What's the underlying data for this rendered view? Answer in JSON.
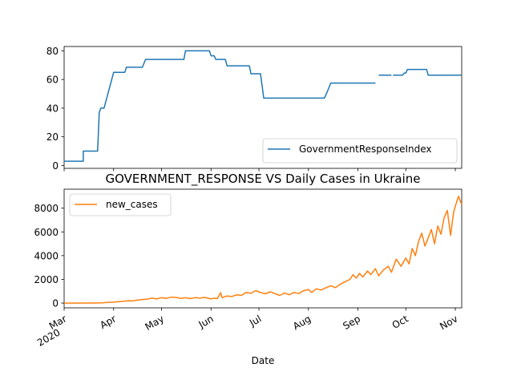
{
  "chart_data": [
    {
      "type": "line",
      "title": "",
      "xlabel": "",
      "ylabel": "",
      "ylim": [
        -2,
        83
      ],
      "yticks": [
        0,
        20,
        40,
        60,
        80
      ],
      "legend": {
        "position": "lower-right",
        "entries": [
          "GovernmentResponseIndex"
        ]
      },
      "grid": false,
      "series": [
        {
          "name": "GovernmentResponseIndex",
          "color": "#1f77b4",
          "segments": [
            [
              [
                "2020-03-01",
                3
              ],
              [
                "2020-03-13",
                3
              ],
              [
                "2020-03-13",
                10
              ],
              [
                "2020-03-22",
                10
              ],
              [
                "2020-03-23",
                37
              ],
              [
                "2020-03-24",
                40
              ],
              [
                "2020-03-26",
                40
              ],
              [
                "2020-04-01",
                65
              ],
              [
                "2020-04-08",
                65
              ],
              [
                "2020-04-09",
                68.5
              ],
              [
                "2020-04-19",
                68.5
              ],
              [
                "2020-04-21",
                74
              ],
              [
                "2020-05-15",
                74
              ],
              [
                "2020-05-16",
                80
              ],
              [
                "2020-05-31",
                80
              ],
              [
                "2020-06-01",
                76.5
              ],
              [
                "2020-06-03",
                76.5
              ],
              [
                "2020-06-04",
                74
              ],
              [
                "2020-06-10",
                74
              ],
              [
                "2020-06-11",
                69.5
              ],
              [
                "2020-06-25",
                69.5
              ],
              [
                "2020-06-26",
                64
              ],
              [
                "2020-07-02",
                64
              ],
              [
                "2020-07-04",
                47
              ],
              [
                "2020-08-11",
                47
              ],
              [
                "2020-08-13",
                52
              ],
              [
                "2020-08-15",
                57.5
              ],
              [
                "2020-09-12",
                57.5
              ]
            ],
            [
              [
                "2020-09-14",
                63
              ],
              [
                "2020-09-22",
                63
              ]
            ],
            [
              [
                "2020-09-23",
                63
              ],
              [
                "2020-09-29",
                63
              ],
              [
                "2020-09-30",
                64.5
              ],
              [
                "2020-10-01",
                64.5
              ],
              [
                "2020-10-02",
                67
              ],
              [
                "2020-10-14",
                67
              ],
              [
                "2020-10-15",
                63
              ],
              [
                "2020-11-05",
                63
              ]
            ]
          ]
        }
      ]
    },
    {
      "type": "line",
      "title": "GOVERNMENT_RESPONSE VS Daily Cases in Ukraine",
      "xlabel": "Date",
      "ylabel": "",
      "ylim": [
        -400,
        9600
      ],
      "yticks": [
        0,
        2000,
        4000,
        6000,
        8000
      ],
      "xlim": [
        "2020-03-01",
        "2020-11-05"
      ],
      "xticks": [
        {
          "date": "2020-03-01",
          "label": "Mar",
          "sublabel": "2020"
        },
        {
          "date": "2020-04-01",
          "label": "Apr"
        },
        {
          "date": "2020-05-01",
          "label": "May"
        },
        {
          "date": "2020-06-01",
          "label": "Jun"
        },
        {
          "date": "2020-07-01",
          "label": "Jul"
        },
        {
          "date": "2020-08-01",
          "label": "Aug"
        },
        {
          "date": "2020-09-01",
          "label": "Sep"
        },
        {
          "date": "2020-10-01",
          "label": "Oct"
        },
        {
          "date": "2020-11-01",
          "label": "Nov"
        }
      ],
      "legend": {
        "position": "upper-left",
        "entries": [
          "new_cases"
        ]
      },
      "grid": false,
      "series": [
        {
          "name": "new_cases",
          "color": "#ff7f0e",
          "points": [
            [
              "2020-03-01",
              0
            ],
            [
              "2020-03-20",
              5
            ],
            [
              "2020-03-25",
              20
            ],
            [
              "2020-03-28",
              50
            ],
            [
              "2020-04-01",
              80
            ],
            [
              "2020-04-04",
              120
            ],
            [
              "2020-04-07",
              150
            ],
            [
              "2020-04-10",
              200
            ],
            [
              "2020-04-13",
              180
            ],
            [
              "2020-04-16",
              260
            ],
            [
              "2020-04-19",
              300
            ],
            [
              "2020-04-22",
              330
            ],
            [
              "2020-04-25",
              420
            ],
            [
              "2020-04-28",
              350
            ],
            [
              "2020-05-01",
              460
            ],
            [
              "2020-05-04",
              400
            ],
            [
              "2020-05-07",
              500
            ],
            [
              "2020-05-10",
              480
            ],
            [
              "2020-05-13",
              400
            ],
            [
              "2020-05-16",
              450
            ],
            [
              "2020-05-19",
              380
            ],
            [
              "2020-05-22",
              460
            ],
            [
              "2020-05-25",
              420
            ],
            [
              "2020-05-28",
              480
            ],
            [
              "2020-06-01",
              350
            ],
            [
              "2020-06-03",
              420
            ],
            [
              "2020-06-05",
              380
            ],
            [
              "2020-06-07",
              880
            ],
            [
              "2020-06-08",
              450
            ],
            [
              "2020-06-11",
              600
            ],
            [
              "2020-06-14",
              550
            ],
            [
              "2020-06-17",
              700
            ],
            [
              "2020-06-20",
              650
            ],
            [
              "2020-06-23",
              900
            ],
            [
              "2020-06-26",
              820
            ],
            [
              "2020-06-29",
              1050
            ],
            [
              "2020-07-02",
              900
            ],
            [
              "2020-07-05",
              780
            ],
            [
              "2020-07-08",
              950
            ],
            [
              "2020-07-11",
              800
            ],
            [
              "2020-07-14",
              650
            ],
            [
              "2020-07-17",
              850
            ],
            [
              "2020-07-20",
              700
            ],
            [
              "2020-07-23",
              900
            ],
            [
              "2020-07-26",
              800
            ],
            [
              "2020-07-29",
              1050
            ],
            [
              "2020-08-01",
              1150
            ],
            [
              "2020-08-03",
              900
            ],
            [
              "2020-08-06",
              1200
            ],
            [
              "2020-08-09",
              1100
            ],
            [
              "2020-08-12",
              1300
            ],
            [
              "2020-08-15",
              1450
            ],
            [
              "2020-08-18",
              1300
            ],
            [
              "2020-08-21",
              1600
            ],
            [
              "2020-08-24",
              1800
            ],
            [
              "2020-08-27",
              2000
            ],
            [
              "2020-08-29",
              2400
            ],
            [
              "2020-08-31",
              2100
            ],
            [
              "2020-09-02",
              2500
            ],
            [
              "2020-09-04",
              2200
            ],
            [
              "2020-09-07",
              2700
            ],
            [
              "2020-09-09",
              2400
            ],
            [
              "2020-09-12",
              2900
            ],
            [
              "2020-09-14",
              2300
            ],
            [
              "2020-09-17",
              2800
            ],
            [
              "2020-09-20",
              3100
            ],
            [
              "2020-09-22",
              2600
            ],
            [
              "2020-09-25",
              3700
            ],
            [
              "2020-09-28",
              3100
            ],
            [
              "2020-10-01",
              3800
            ],
            [
              "2020-10-03",
              3300
            ],
            [
              "2020-10-05",
              4600
            ],
            [
              "2020-10-07",
              4000
            ],
            [
              "2020-10-09",
              5200
            ],
            [
              "2020-10-11",
              5900
            ],
            [
              "2020-10-13",
              4800
            ],
            [
              "2020-10-15",
              5500
            ],
            [
              "2020-10-17",
              6200
            ],
            [
              "2020-10-19",
              5000
            ],
            [
              "2020-10-21",
              6500
            ],
            [
              "2020-10-23",
              5800
            ],
            [
              "2020-10-25",
              7200
            ],
            [
              "2020-10-27",
              7800
            ],
            [
              "2020-10-29",
              5700
            ],
            [
              "2020-10-31",
              7700
            ],
            [
              "2020-11-02",
              8600
            ],
            [
              "2020-11-03",
              9000
            ],
            [
              "2020-11-05",
              8300
            ]
          ]
        }
      ]
    }
  ]
}
